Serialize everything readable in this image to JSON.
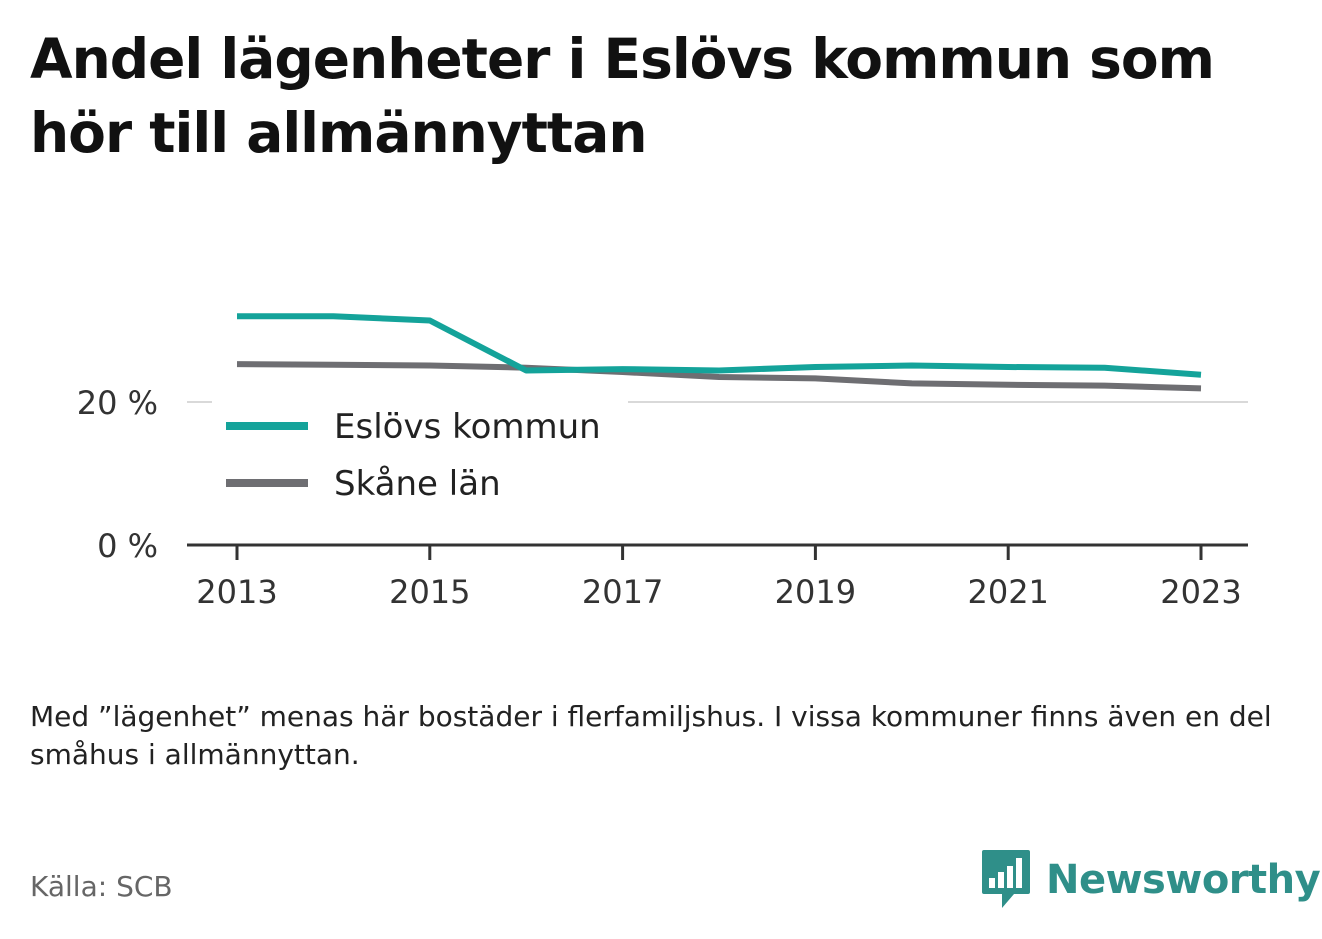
{
  "title": "Andel lägenheter i Eslövs kommun som hör till allmännyttan",
  "note": "Med ”lägenhet” menas här bostäder i flerfamiljshus. I vissa kommuner finns även en del småhus i allmännyttan.",
  "source": "Källa: SCB",
  "brand": {
    "name": "Newsworthy",
    "icon": "newsworthy-logo-icon",
    "color": "#2f8f89"
  },
  "chart_data": {
    "type": "line",
    "x": [
      2013,
      2014,
      2015,
      2016,
      2017,
      2018,
      2019,
      2020,
      2021,
      2022,
      2023
    ],
    "series": [
      {
        "name": "Eslövs kommun",
        "color": "#14a39a",
        "values": [
          32.0,
          32.0,
          31.4,
          24.4,
          24.6,
          24.4,
          24.9,
          25.1,
          24.9,
          24.8,
          23.8
        ]
      },
      {
        "name": "Skåne län",
        "color": "#6e6e72",
        "values": [
          25.3,
          25.2,
          25.1,
          24.8,
          24.2,
          23.5,
          23.3,
          22.6,
          22.4,
          22.3,
          21.9
        ]
      }
    ],
    "x_ticks": [
      "2013",
      "2015",
      "2017",
      "2019",
      "2021",
      "2023"
    ],
    "y_ticks": [
      {
        "value": 0,
        "label": "0 %"
      },
      {
        "value": 20,
        "label": "20 %"
      }
    ],
    "ylim": [
      0,
      32
    ],
    "grid": true,
    "legend": "inside-bottom-left"
  }
}
